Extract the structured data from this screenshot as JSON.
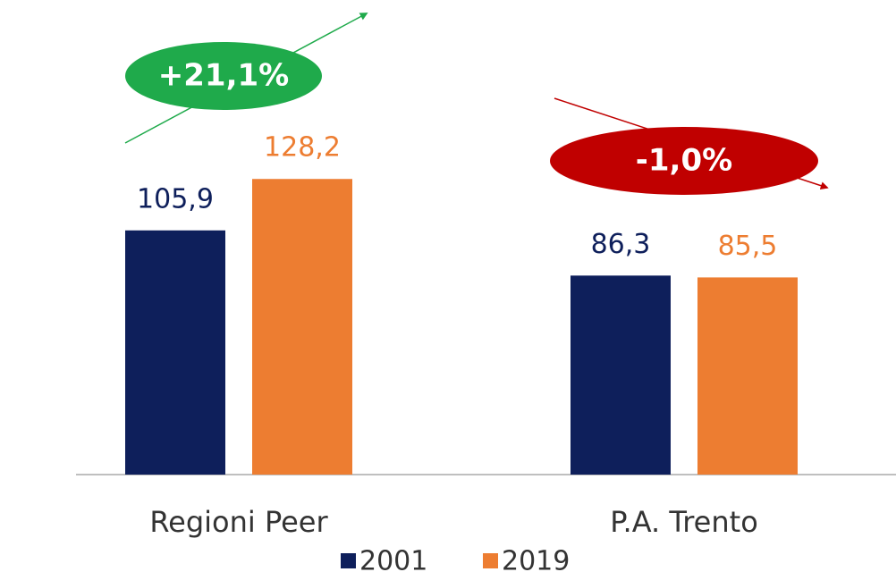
{
  "chart_data": {
    "type": "bar",
    "categories": [
      "Regioni Peer",
      "P.A. Trento"
    ],
    "series": [
      {
        "name": "2001",
        "color": "#0e1f5b",
        "values": [
          105.9,
          86.3
        ],
        "value_labels": [
          "105,9",
          "86,3"
        ]
      },
      {
        "name": "2019",
        "color": "#ed7d31",
        "values": [
          128.2,
          85.5
        ],
        "value_labels": [
          "128,2",
          "85,5"
        ]
      }
    ],
    "annotations": [
      {
        "text": "+21,1%",
        "color": "#1faa4b"
      },
      {
        "text": "-1,0%",
        "color": "#c00000"
      }
    ],
    "legend": "bottom"
  }
}
